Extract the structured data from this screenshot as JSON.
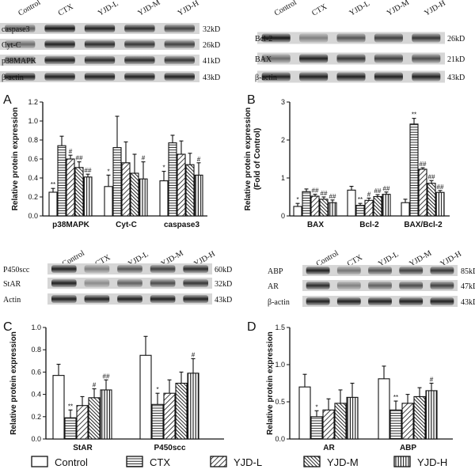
{
  "groups": [
    "Control",
    "CTX",
    "YJD-L",
    "YJD-M",
    "YJD-H"
  ],
  "patterns": [
    "blank",
    "hlines",
    "diag",
    "diagdense",
    "vlines"
  ],
  "blots": [
    {
      "lanes": [
        "Control",
        "CTX",
        "YJD-L",
        "YJD-M",
        "YJD-H"
      ],
      "rows": [
        {
          "name": "caspase3",
          "kd": "32kD",
          "intensity": [
            0.55,
            0.9,
            0.85,
            0.8,
            0.7
          ]
        },
        {
          "name": "Cyt-C",
          "kd": "26kD",
          "intensity": [
            0.5,
            0.85,
            0.8,
            0.75,
            0.7
          ]
        },
        {
          "name": "p38MAPK",
          "kd": "41kD",
          "intensity": [
            0.55,
            0.85,
            0.8,
            0.8,
            0.75
          ]
        },
        {
          "name": "β-actin",
          "kd": "43kD",
          "intensity": [
            0.85,
            0.85,
            0.85,
            0.85,
            0.85
          ]
        }
      ]
    },
    {
      "lanes": [
        "Control",
        "CTX",
        "YJD-L",
        "YJD-M",
        "YJD-H"
      ],
      "rows": [
        {
          "name": "Bcl-2",
          "kd": "26kD",
          "intensity": [
            0.9,
            0.4,
            0.6,
            0.7,
            0.75
          ]
        },
        {
          "name": "BAX",
          "kd": "21kD",
          "intensity": [
            0.5,
            0.85,
            0.75,
            0.7,
            0.65
          ]
        },
        {
          "name": "β-actin",
          "kd": "43kD",
          "intensity": [
            0.85,
            0.85,
            0.85,
            0.85,
            0.85
          ]
        }
      ]
    },
    {
      "lanes": [
        "Control",
        "CTX",
        "YJD-L",
        "YJD-M",
        "YJD-H"
      ],
      "rows": [
        {
          "name": "P450scc",
          "kd": "60kD",
          "intensity": [
            0.85,
            0.4,
            0.6,
            0.7,
            0.8
          ]
        },
        {
          "name": "StAR",
          "kd": "32kD",
          "intensity": [
            0.85,
            0.35,
            0.55,
            0.65,
            0.75
          ]
        },
        {
          "name": "Actin",
          "kd": "43kD",
          "intensity": [
            0.85,
            0.85,
            0.85,
            0.85,
            0.85
          ]
        }
      ]
    },
    {
      "lanes": [
        "Control",
        "CTX",
        "YJD-L",
        "YJD-M",
        "YJD-H"
      ],
      "rows": [
        {
          "name": "ABP",
          "kd": "85kD",
          "intensity": [
            0.85,
            0.45,
            0.6,
            0.7,
            0.75
          ]
        },
        {
          "name": "AR",
          "kd": "47kD",
          "intensity": [
            0.8,
            0.4,
            0.55,
            0.65,
            0.7
          ]
        },
        {
          "name": "β-actin",
          "kd": "43kD",
          "intensity": [
            0.85,
            0.85,
            0.85,
            0.85,
            0.85
          ]
        }
      ]
    }
  ],
  "legend": [
    "Control",
    "CTX",
    "YJD-L",
    "YJD-M",
    "YJD-H"
  ],
  "chart_data": [
    {
      "type": "bar",
      "panel": "A",
      "ylabel": "Relative protein expression",
      "ylim": [
        0,
        1.2
      ],
      "yticks": [
        "0.0",
        "0.2",
        "0.4",
        "0.6",
        "0.8",
        "1.0",
        "1.2"
      ],
      "ytick_values": [
        0,
        0.2,
        0.4,
        0.6,
        0.8,
        1.0,
        1.2
      ],
      "categories": [
        "p38MAPK",
        "Cyt-C",
        "caspase3"
      ],
      "series": [
        {
          "name": "Control",
          "values": [
            0.25,
            0.31,
            0.37
          ],
          "errors": [
            0.04,
            0.12,
            0.1
          ]
        },
        {
          "name": "CTX",
          "values": [
            0.74,
            0.72,
            0.77
          ],
          "errors": [
            0.1,
            0.33,
            0.08
          ]
        },
        {
          "name": "YJD-L",
          "values": [
            0.6,
            0.56,
            0.65
          ],
          "errors": [
            0.04,
            0.22,
            0.14
          ]
        },
        {
          "name": "YJD-M",
          "values": [
            0.51,
            0.45,
            0.54
          ],
          "errors": [
            0.06,
            0.2,
            0.12
          ]
        },
        {
          "name": "YJD-H",
          "values": [
            0.41,
            0.39,
            0.43
          ],
          "errors": [
            0.03,
            0.18,
            0.13
          ]
        }
      ],
      "annotations": [
        [
          "**",
          "",
          "#",
          "##",
          "##"
        ],
        [
          "*",
          "",
          "",
          "",
          "#"
        ],
        [
          "*",
          "",
          "",
          "",
          "#"
        ]
      ]
    },
    {
      "type": "bar",
      "panel": "B",
      "ylabel": "Relative protein expression (Fold of Control)",
      "ylim": [
        0,
        3
      ],
      "yticks": [
        "0",
        "1",
        "2",
        "3"
      ],
      "ytick_values": [
        0,
        1,
        2,
        3
      ],
      "categories": [
        "BAX",
        "Bcl-2",
        "BAX/Bcl-2"
      ],
      "series": [
        {
          "name": "Control",
          "values": [
            0.25,
            0.68,
            0.35
          ],
          "errors": [
            0.08,
            0.1,
            0.09
          ]
        },
        {
          "name": "CTX",
          "values": [
            0.64,
            0.28,
            2.42
          ],
          "errors": [
            0.07,
            0.05,
            0.15
          ]
        },
        {
          "name": "YJD-L",
          "values": [
            0.52,
            0.41,
            1.23
          ],
          "errors": [
            0.05,
            0.06,
            0.04
          ]
        },
        {
          "name": "YJD-M",
          "values": [
            0.44,
            0.51,
            0.86
          ],
          "errors": [
            0.06,
            0.05,
            0.07
          ]
        },
        {
          "name": "YJD-H",
          "values": [
            0.35,
            0.57,
            0.62
          ],
          "errors": [
            0.07,
            0.06,
            0.05
          ]
        }
      ],
      "annotations": [
        [
          "*",
          "",
          "##",
          "##",
          "##"
        ],
        [
          "",
          "**",
          "#",
          "##",
          "##"
        ],
        [
          "",
          "**",
          "##",
          "##",
          "##"
        ]
      ]
    },
    {
      "type": "bar",
      "panel": "C",
      "ylabel": "Relative protein expression",
      "ylim": [
        0,
        1.0
      ],
      "yticks": [
        "0.0",
        "0.2",
        "0.4",
        "0.6",
        "0.8",
        "1.0"
      ],
      "ytick_values": [
        0,
        0.2,
        0.4,
        0.6,
        0.8,
        1.0
      ],
      "categories": [
        "StAR",
        "P450scc"
      ],
      "series": [
        {
          "name": "Control",
          "values": [
            0.57,
            0.75
          ],
          "errors": [
            0.1,
            0.17
          ]
        },
        {
          "name": "CTX",
          "values": [
            0.19,
            0.31
          ],
          "errors": [
            0.07,
            0.1
          ]
        },
        {
          "name": "YJD-L",
          "values": [
            0.3,
            0.41
          ],
          "errors": [
            0.08,
            0.12
          ]
        },
        {
          "name": "YJD-M",
          "values": [
            0.37,
            0.5
          ],
          "errors": [
            0.08,
            0.1
          ]
        },
        {
          "name": "YJD-H",
          "values": [
            0.44,
            0.59
          ],
          "errors": [
            0.09,
            0.13
          ]
        }
      ],
      "annotations": [
        [
          "",
          "**",
          "",
          "#",
          "##"
        ],
        [
          "",
          "*",
          "",
          "",
          "#"
        ]
      ]
    },
    {
      "type": "bar",
      "panel": "D",
      "ylabel": "Relative protein expression",
      "ylim": [
        0,
        1.5
      ],
      "yticks": [
        "0.0",
        "0.5",
        "1.0",
        "1.5"
      ],
      "ytick_values": [
        0,
        0.5,
        1.0,
        1.5
      ],
      "categories": [
        "AR",
        "ABP"
      ],
      "series": [
        {
          "name": "Control",
          "values": [
            0.7,
            0.81
          ],
          "errors": [
            0.17,
            0.17
          ]
        },
        {
          "name": "CTX",
          "values": [
            0.3,
            0.39
          ],
          "errors": [
            0.08,
            0.12
          ]
        },
        {
          "name": "YJD-L",
          "values": [
            0.39,
            0.48
          ],
          "errors": [
            0.15,
            0.12
          ]
        },
        {
          "name": "YJD-M",
          "values": [
            0.48,
            0.57
          ],
          "errors": [
            0.18,
            0.12
          ]
        },
        {
          "name": "YJD-H",
          "values": [
            0.56,
            0.65
          ],
          "errors": [
            0.19,
            0.1
          ]
        }
      ],
      "annotations": [
        [
          "",
          "*",
          "",
          "",
          ""
        ],
        [
          "",
          "**",
          "",
          "",
          "#"
        ]
      ]
    }
  ]
}
